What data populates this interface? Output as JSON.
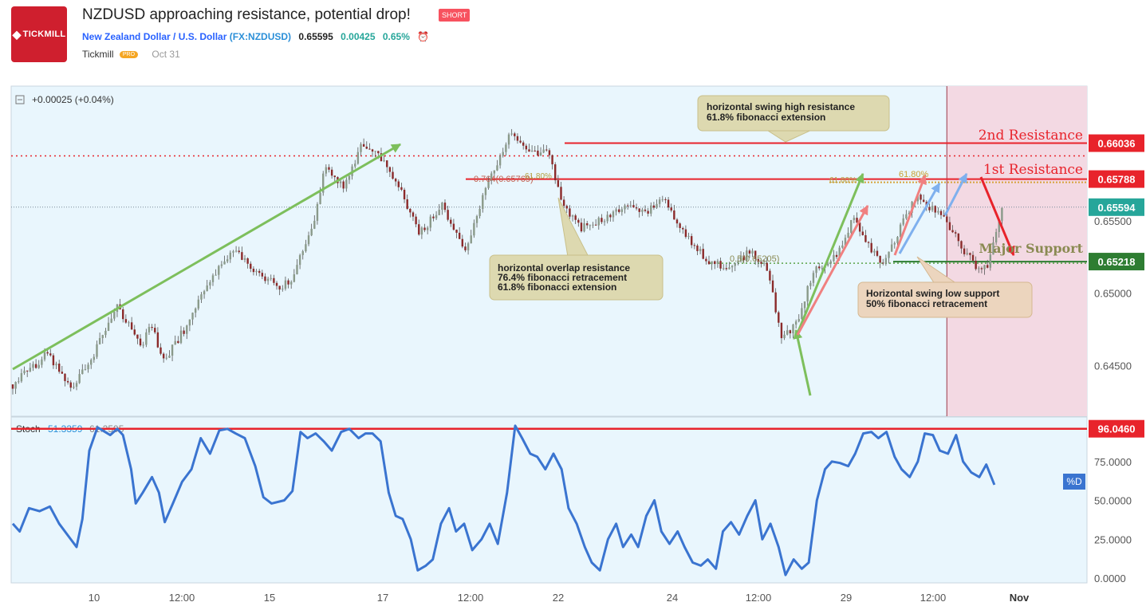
{
  "header": {
    "logo_text": "TICKMILL",
    "title": "NZDUSD approaching resistance, potential drop!",
    "badge": "SHORT",
    "instrument": "New Zealand Dollar / U.S. Dollar",
    "symbol": "(FX:NZDUSD)",
    "price": "0.65595",
    "change": "0.00425",
    "change_pct": "0.65%",
    "author": "Tickmill",
    "author_badge": "PRO",
    "date": "Oct 31"
  },
  "colors": {
    "panel_bg": "#e9f6fd",
    "shade": "#f3d9e3",
    "red": "#e8232b",
    "green_label": "#2e7d32",
    "olive_text": "#8a8a52",
    "green_arrow": "#7dbf5c",
    "pink_arrow": "#f08080",
    "blue_arrow": "#7fb0ee",
    "stoch_line": "#3a74d0",
    "note_bg": "#ddd9b0"
  },
  "chart_data": {
    "type": "candlestick",
    "symbol": "NZDUSD",
    "x_ticks": [
      "10",
      "12:00",
      "15",
      "17",
      "12:00",
      "22",
      "24",
      "12:00",
      "29",
      "12:00",
      "Nov"
    ],
    "price_axis": [
      "0.65500",
      "0.65000",
      "0.64500"
    ],
    "ylim": [
      0.6415,
      0.6643
    ],
    "close_path": [
      {
        "t": 0,
        "p": 0.6437
      },
      {
        "t": 3,
        "p": 0.6458
      },
      {
        "t": 5,
        "p": 0.6435
      },
      {
        "t": 7,
        "p": 0.6458
      },
      {
        "t": 9,
        "p": 0.6492
      },
      {
        "t": 11,
        "p": 0.6462
      },
      {
        "t": 12,
        "p": 0.6478
      },
      {
        "t": 13,
        "p": 0.6452
      },
      {
        "t": 15,
        "p": 0.6478
      },
      {
        "t": 17,
        "p": 0.6508
      },
      {
        "t": 19,
        "p": 0.653
      },
      {
        "t": 21,
        "p": 0.6515
      },
      {
        "t": 23,
        "p": 0.6503
      },
      {
        "t": 24,
        "p": 0.651
      },
      {
        "t": 26,
        "p": 0.655
      },
      {
        "t": 27,
        "p": 0.659
      },
      {
        "t": 28.5,
        "p": 0.6572
      },
      {
        "t": 30,
        "p": 0.66
      },
      {
        "t": 32,
        "p": 0.6593
      },
      {
        "t": 33.5,
        "p": 0.657
      },
      {
        "t": 35,
        "p": 0.654
      },
      {
        "t": 37,
        "p": 0.656
      },
      {
        "t": 39,
        "p": 0.6528
      },
      {
        "t": 40.5,
        "p": 0.6565
      },
      {
        "t": 42,
        "p": 0.6595
      },
      {
        "t": 43,
        "p": 0.6612
      },
      {
        "t": 44.5,
        "p": 0.6595
      },
      {
        "t": 46,
        "p": 0.66
      },
      {
        "t": 47.5,
        "p": 0.656
      },
      {
        "t": 49,
        "p": 0.6545
      },
      {
        "t": 51,
        "p": 0.6552
      },
      {
        "t": 53,
        "p": 0.656
      },
      {
        "t": 54.5,
        "p": 0.6555
      },
      {
        "t": 56,
        "p": 0.6565
      },
      {
        "t": 58,
        "p": 0.654
      },
      {
        "t": 60,
        "p": 0.6522
      },
      {
        "t": 62,
        "p": 0.6517
      },
      {
        "t": 63.5,
        "p": 0.653
      },
      {
        "t": 65,
        "p": 0.6518
      },
      {
        "t": 65.7,
        "p": 0.649
      },
      {
        "t": 66.3,
        "p": 0.6468
      },
      {
        "t": 67.5,
        "p": 0.6478
      },
      {
        "t": 69,
        "p": 0.6515
      },
      {
        "t": 71,
        "p": 0.6525
      },
      {
        "t": 72.5,
        "p": 0.6553
      },
      {
        "t": 74,
        "p": 0.653
      },
      {
        "t": 75,
        "p": 0.652
      },
      {
        "t": 76.5,
        "p": 0.6545
      },
      {
        "t": 78,
        "p": 0.657
      },
      {
        "t": 79.5,
        "p": 0.6555
      },
      {
        "t": 80.5,
        "p": 0.655
      },
      {
        "t": 81.5,
        "p": 0.6535
      },
      {
        "t": 83,
        "p": 0.6518
      },
      {
        "t": 84,
        "p": 0.652
      },
      {
        "t": 85.3,
        "p": 0.656
      }
    ],
    "current_price": 0.65594,
    "shaded_region_start_t": 80.5,
    "levels": [
      {
        "name": "2nd Resistance",
        "price": 0.66036,
        "label": "0.66036"
      },
      {
        "name": "1st Resistance",
        "price": 0.65788,
        "label": "0.65788"
      },
      {
        "name": "Major Support",
        "price": 0.65218,
        "label": "0.65218"
      },
      {
        "name": "Current",
        "price": 0.65594,
        "label": "0.65594"
      }
    ],
    "fib_labels": [
      "0.764(0.65769)",
      "61.80%",
      "61.80%",
      "61.80%",
      "0.5(0.65205)"
    ],
    "annotations": [
      {
        "text": [
          "horizontal swing high resistance",
          "61.8% fibonacci extension"
        ]
      },
      {
        "text": [
          "horizontal overlap resistance",
          "76.4% fibonacci retracement",
          "61.8% fibonacci extension"
        ]
      },
      {
        "text": [
          "Horizontal swing low support",
          "50% fibonacci retracement"
        ]
      }
    ],
    "top_change": "+0.00025 (+0.04%)",
    "stoch": {
      "label": "Stoch",
      "k_value": "51.3359",
      "d_value": "61.2595",
      "axis": [
        "75.0000",
        "50.0000",
        "25.0000",
        "0.0000"
      ],
      "level": 96.046,
      "level_label": "96.0460",
      "d_tag": "%D",
      "ylim": [
        0,
        100
      ],
      "series": [
        {
          "t": 0,
          "v": 35
        },
        {
          "t": 0.6,
          "v": 30
        },
        {
          "t": 1.4,
          "v": 45
        },
        {
          "t": 2.3,
          "v": 43
        },
        {
          "t": 3.2,
          "v": 46
        },
        {
          "t": 4,
          "v": 35
        },
        {
          "t": 4.8,
          "v": 27
        },
        {
          "t": 5.5,
          "v": 20
        },
        {
          "t": 6,
          "v": 38
        },
        {
          "t": 6.6,
          "v": 82
        },
        {
          "t": 7.3,
          "v": 97
        },
        {
          "t": 8.4,
          "v": 92
        },
        {
          "t": 9,
          "v": 96
        },
        {
          "t": 9.5,
          "v": 92
        },
        {
          "t": 10.2,
          "v": 70
        },
        {
          "t": 10.6,
          "v": 48
        },
        {
          "t": 11.2,
          "v": 55
        },
        {
          "t": 12,
          "v": 65
        },
        {
          "t": 12.6,
          "v": 55
        },
        {
          "t": 13.1,
          "v": 36
        },
        {
          "t": 13.8,
          "v": 48
        },
        {
          "t": 14.6,
          "v": 62
        },
        {
          "t": 15.4,
          "v": 70
        },
        {
          "t": 16.2,
          "v": 90
        },
        {
          "t": 17,
          "v": 80
        },
        {
          "t": 17.8,
          "v": 95
        },
        {
          "t": 18.5,
          "v": 96
        },
        {
          "t": 19.2,
          "v": 93
        },
        {
          "t": 20,
          "v": 90
        },
        {
          "t": 20.9,
          "v": 72
        },
        {
          "t": 21.6,
          "v": 52
        },
        {
          "t": 22.3,
          "v": 48
        },
        {
          "t": 23.4,
          "v": 50
        },
        {
          "t": 24.1,
          "v": 56
        },
        {
          "t": 24.8,
          "v": 94
        },
        {
          "t": 25.4,
          "v": 90
        },
        {
          "t": 26.1,
          "v": 93
        },
        {
          "t": 26.8,
          "v": 88
        },
        {
          "t": 27.5,
          "v": 82
        },
        {
          "t": 28.3,
          "v": 94
        },
        {
          "t": 29,
          "v": 96
        },
        {
          "t": 29.8,
          "v": 90
        },
        {
          "t": 30.4,
          "v": 93
        },
        {
          "t": 31,
          "v": 93
        },
        {
          "t": 31.7,
          "v": 88
        },
        {
          "t": 32.4,
          "v": 55
        },
        {
          "t": 33,
          "v": 40
        },
        {
          "t": 33.6,
          "v": 38
        },
        {
          "t": 34.3,
          "v": 25
        },
        {
          "t": 34.9,
          "v": 5
        },
        {
          "t": 35.6,
          "v": 8
        },
        {
          "t": 36.2,
          "v": 12
        },
        {
          "t": 36.9,
          "v": 35
        },
        {
          "t": 37.6,
          "v": 45
        },
        {
          "t": 38.2,
          "v": 30
        },
        {
          "t": 38.9,
          "v": 35
        },
        {
          "t": 39.6,
          "v": 18
        },
        {
          "t": 40.4,
          "v": 25
        },
        {
          "t": 41.1,
          "v": 35
        },
        {
          "t": 41.8,
          "v": 22
        },
        {
          "t": 42.6,
          "v": 55
        },
        {
          "t": 43.3,
          "v": 98
        },
        {
          "t": 43.9,
          "v": 90
        },
        {
          "t": 44.6,
          "v": 80
        },
        {
          "t": 45.2,
          "v": 78
        },
        {
          "t": 45.9,
          "v": 70
        },
        {
          "t": 46.6,
          "v": 80
        },
        {
          "t": 47.3,
          "v": 70
        },
        {
          "t": 47.9,
          "v": 45
        },
        {
          "t": 48.6,
          "v": 35
        },
        {
          "t": 49.3,
          "v": 20
        },
        {
          "t": 49.9,
          "v": 10
        },
        {
          "t": 50.6,
          "v": 5
        },
        {
          "t": 51.3,
          "v": 25
        },
        {
          "t": 52,
          "v": 35
        },
        {
          "t": 52.6,
          "v": 20
        },
        {
          "t": 53.3,
          "v": 28
        },
        {
          "t": 53.9,
          "v": 20
        },
        {
          "t": 54.6,
          "v": 40
        },
        {
          "t": 55.3,
          "v": 50
        },
        {
          "t": 55.9,
          "v": 30
        },
        {
          "t": 56.6,
          "v": 22
        },
        {
          "t": 57.3,
          "v": 30
        },
        {
          "t": 57.9,
          "v": 20
        },
        {
          "t": 58.6,
          "v": 10
        },
        {
          "t": 59.3,
          "v": 8
        },
        {
          "t": 59.9,
          "v": 12
        },
        {
          "t": 60.6,
          "v": 6
        },
        {
          "t": 61.2,
          "v": 30
        },
        {
          "t": 61.9,
          "v": 36
        },
        {
          "t": 62.6,
          "v": 28
        },
        {
          "t": 63.3,
          "v": 40
        },
        {
          "t": 64,
          "v": 50
        },
        {
          "t": 64.6,
          "v": 25
        },
        {
          "t": 65.3,
          "v": 35
        },
        {
          "t": 66,
          "v": 20
        },
        {
          "t": 66.6,
          "v": 2
        },
        {
          "t": 67.3,
          "v": 12
        },
        {
          "t": 68,
          "v": 6
        },
        {
          "t": 68.6,
          "v": 10
        },
        {
          "t": 69.3,
          "v": 50
        },
        {
          "t": 70,
          "v": 70
        },
        {
          "t": 70.6,
          "v": 75
        },
        {
          "t": 71.3,
          "v": 74
        },
        {
          "t": 72,
          "v": 72
        },
        {
          "t": 72.6,
          "v": 80
        },
        {
          "t": 73.3,
          "v": 93
        },
        {
          "t": 74,
          "v": 94
        },
        {
          "t": 74.6,
          "v": 90
        },
        {
          "t": 75.3,
          "v": 94
        },
        {
          "t": 76,
          "v": 78
        },
        {
          "t": 76.6,
          "v": 70
        },
        {
          "t": 77.3,
          "v": 65
        },
        {
          "t": 78,
          "v": 75
        },
        {
          "t": 78.6,
          "v": 93
        },
        {
          "t": 79.3,
          "v": 92
        },
        {
          "t": 79.9,
          "v": 82
        },
        {
          "t": 80.6,
          "v": 80
        },
        {
          "t": 81.3,
          "v": 92
        },
        {
          "t": 81.9,
          "v": 75
        },
        {
          "t": 82.6,
          "v": 68
        },
        {
          "t": 83.3,
          "v": 65
        },
        {
          "t": 83.9,
          "v": 73
        },
        {
          "t": 84.6,
          "v": 60
        }
      ]
    }
  }
}
